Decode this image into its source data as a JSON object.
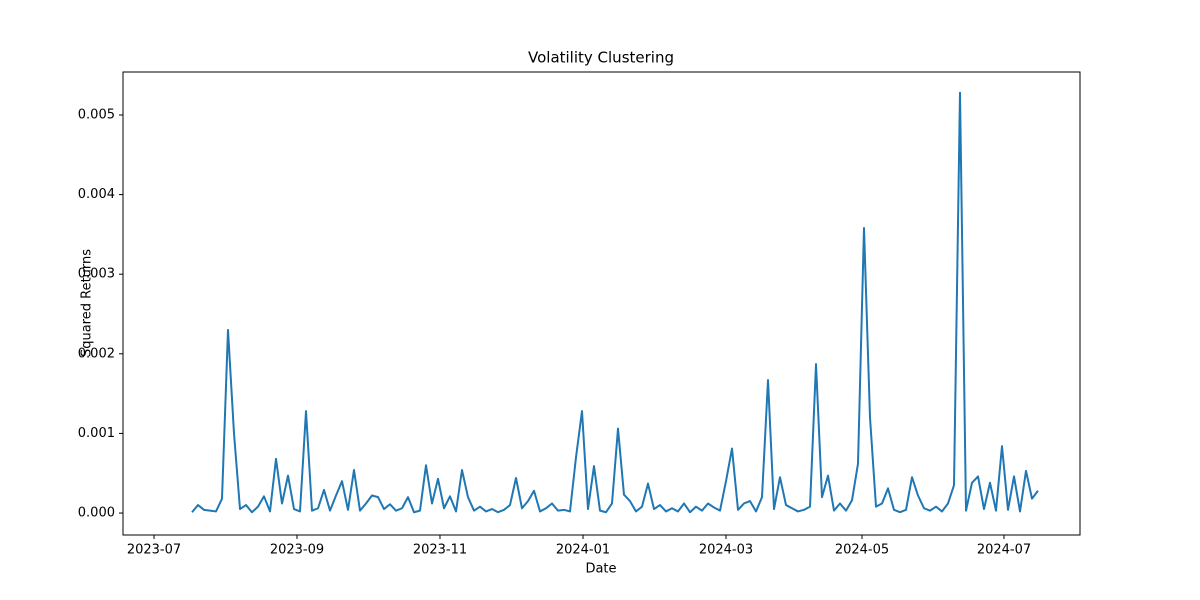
{
  "chart_data": {
    "type": "line",
    "title": "Volatility Clustering",
    "x_label": "Date",
    "y_label": "Squared Returns",
    "color": "#1f77b4",
    "xlim": [
      -11.5,
      148
    ],
    "xticks": [
      {
        "value": -6.33,
        "label": "2023-07"
      },
      {
        "value": 17.5,
        "label": "2023-09"
      },
      {
        "value": 41.33,
        "label": "2023-11"
      },
      {
        "value": 65.17,
        "label": "2024-01"
      },
      {
        "value": 89,
        "label": "2024-03"
      },
      {
        "value": 111.67,
        "label": "2024-05"
      },
      {
        "value": 135.33,
        "label": "2024-07"
      }
    ],
    "ylim": [
      -0.000276,
      0.00554
    ],
    "yticks": [
      {
        "value": 0,
        "label": "0.000"
      },
      {
        "value": 0.001,
        "label": "0.001"
      },
      {
        "value": 0.002,
        "label": "0.002"
      },
      {
        "value": 0.003,
        "label": "0.003"
      },
      {
        "value": 0.004,
        "label": "0.004"
      },
      {
        "value": 0.005,
        "label": "0.005"
      }
    ],
    "values": [
      1e-05,
      0.0001,
      4e-05,
      3e-05,
      2e-05,
      0.00018,
      0.0023,
      0.001,
      5e-05,
      0.0001,
      1e-05,
      8e-05,
      0.00021,
      2e-05,
      0.00068,
      0.00012,
      0.00047,
      5e-05,
      2e-05,
      0.00128,
      3e-05,
      6e-05,
      0.00029,
      3e-05,
      0.00022,
      0.0004,
      4e-05,
      0.00054,
      3e-05,
      0.00012,
      0.00022,
      0.0002,
      5e-05,
      0.00011,
      3e-05,
      6e-05,
      0.0002,
      1e-05,
      3e-05,
      0.0006,
      0.00012,
      0.00043,
      6e-05,
      0.00021,
      2e-05,
      0.00054,
      0.0002,
      3e-05,
      8e-05,
      2e-05,
      5e-05,
      1e-05,
      4e-05,
      0.0001,
      0.00044,
      6e-05,
      0.00015,
      0.00028,
      2e-05,
      6e-05,
      0.00012,
      3e-05,
      4e-05,
      2e-05,
      0.0007,
      0.00128,
      5e-05,
      0.00059,
      3e-05,
      1e-05,
      0.00012,
      0.00106,
      0.00023,
      0.00015,
      2e-05,
      8e-05,
      0.00037,
      5e-05,
      0.0001,
      2e-05,
      6e-05,
      2e-05,
      0.00012,
      1e-05,
      8e-05,
      3e-05,
      0.00012,
      7e-05,
      3e-05,
      0.0004,
      0.00081,
      4e-05,
      0.00012,
      0.00015,
      2e-05,
      0.0002,
      0.00167,
      5e-05,
      0.00045,
      0.0001,
      6e-05,
      2e-05,
      4e-05,
      8e-05,
      0.00187,
      0.0002,
      0.00047,
      3e-05,
      0.00012,
      3e-05,
      0.00016,
      0.00062,
      0.00358,
      0.0012,
      8e-05,
      0.00012,
      0.00031,
      4e-05,
      1e-05,
      4e-05,
      0.00045,
      0.00022,
      6e-05,
      3e-05,
      8e-05,
      2e-05,
      0.00012,
      0.00035,
      0.00528,
      3e-05,
      0.00038,
      0.00046,
      5e-05,
      0.00038,
      3e-05,
      0.00084,
      4e-05,
      0.00046,
      2e-05,
      0.00053,
      0.00018,
      0.00028
    ]
  }
}
